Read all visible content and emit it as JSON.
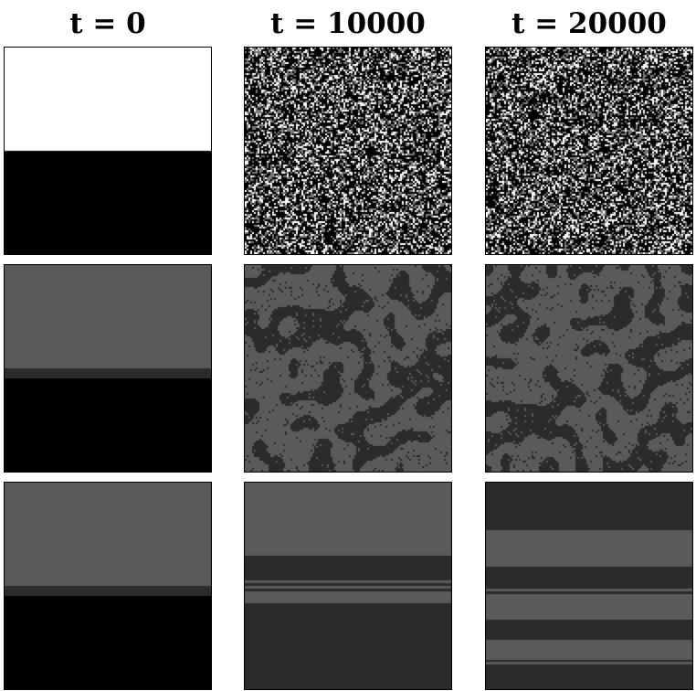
{
  "column_titles": [
    "t = 0",
    "t = 10000",
    "t = 20000"
  ],
  "colors": {
    "white": "#ffffff",
    "light_gray": "#5a5a5a",
    "dark_gray": "#2b2b2b",
    "black": "#000000"
  },
  "rows": [
    {
      "panels": [
        {
          "pattern": "split-white-black"
        },
        {
          "pattern": "random-noise"
        },
        {
          "pattern": "random-noise"
        }
      ]
    },
    {
      "panels": [
        {
          "pattern": "split-gray-black"
        },
        {
          "pattern": "domains"
        },
        {
          "pattern": "domains"
        }
      ]
    },
    {
      "panels": [
        {
          "pattern": "split-gray-black"
        },
        {
          "pattern": "stripes-few"
        },
        {
          "pattern": "stripes-many"
        }
      ]
    }
  ]
}
